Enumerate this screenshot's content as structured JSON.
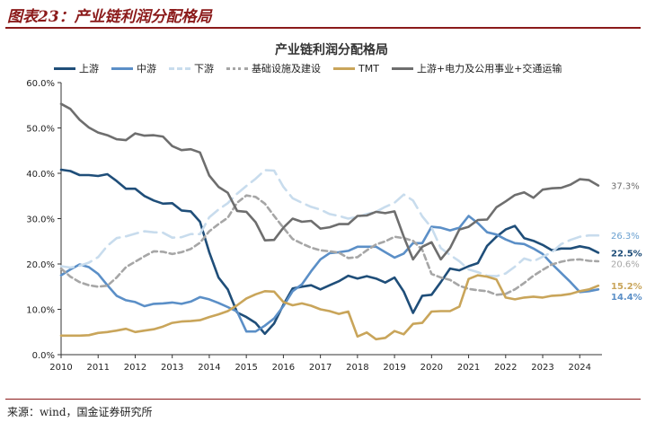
{
  "figure": {
    "title": "图表23：产业链利润分配格局",
    "source": "来源：wind，国金证券研究所"
  },
  "chart_data": {
    "type": "line",
    "title": "产业链利润分配格局",
    "xlim": [
      2010,
      2024.6
    ],
    "ylim": [
      0,
      60
    ],
    "x_ticks": [
      "2010",
      "2011",
      "2012",
      "2013",
      "2014",
      "2015",
      "2016",
      "2017",
      "2018",
      "2019",
      "2020",
      "2021",
      "2022",
      "2023",
      "2024"
    ],
    "y_ticks": [
      "0.0%",
      "10.0%",
      "20.0%",
      "30.0%",
      "40.0%",
      "50.0%",
      "60.0%"
    ],
    "grid": false,
    "legend": "top",
    "series": [
      {
        "name": "上游",
        "color": "#1f4e79",
        "dash": "solid",
        "end_label": "22.5%",
        "x": [
          2010,
          2010.25,
          2010.5,
          2010.75,
          2011,
          2011.25,
          2011.5,
          2011.75,
          2012,
          2012.25,
          2012.5,
          2012.75,
          2013,
          2013.25,
          2013.5,
          2013.75,
          2014,
          2014.25,
          2014.5,
          2014.75,
          2015,
          2015.25,
          2015.5,
          2015.75,
          2016,
          2016.25,
          2016.5,
          2016.75,
          2017,
          2017.25,
          2017.5,
          2017.75,
          2018,
          2018.25,
          2018.5,
          2018.75,
          2019,
          2019.25,
          2019.5,
          2019.75,
          2020,
          2020.25,
          2020.5,
          2020.75,
          2021,
          2021.25,
          2021.5,
          2021.75,
          2022,
          2022.25,
          2022.5,
          2022.75,
          2023,
          2023.25,
          2023.5,
          2023.75,
          2024,
          2024.25,
          2024.5
        ],
        "y": [
          40.8,
          40.5,
          39.6,
          39.6,
          39.4,
          39.8,
          38.3,
          36.6,
          36.6,
          35.0,
          34.0,
          33.3,
          33.4,
          31.8,
          31.6,
          29.3,
          22.6,
          17.0,
          14.4,
          9.3,
          8.3,
          7.0,
          4.6,
          6.9,
          11.0,
          14.6,
          15.0,
          15.3,
          14.4,
          15.3,
          16.2,
          17.4,
          16.8,
          17.3,
          16.8,
          15.9,
          17.0,
          13.9,
          9.2,
          13.0,
          13.2,
          16.0,
          19.0,
          18.6,
          19.5,
          20.2,
          24.0,
          26.0,
          27.6,
          28.4,
          25.7,
          25.1,
          24.2,
          23.0,
          23.4,
          23.4,
          23.9,
          23.5,
          22.5
        ]
      },
      {
        "name": "中游",
        "color": "#5b8fc7",
        "dash": "solid",
        "end_label": "14.4%",
        "x": [
          2010,
          2010.25,
          2010.5,
          2010.75,
          2011,
          2011.25,
          2011.5,
          2011.75,
          2012,
          2012.25,
          2012.5,
          2012.75,
          2013,
          2013.25,
          2013.5,
          2013.75,
          2014,
          2014.25,
          2014.5,
          2014.75,
          2015,
          2015.25,
          2015.5,
          2015.75,
          2016,
          2016.25,
          2016.5,
          2016.75,
          2017,
          2017.25,
          2017.5,
          2017.75,
          2018,
          2018.25,
          2018.5,
          2018.75,
          2019,
          2019.25,
          2019.5,
          2019.75,
          2020,
          2020.25,
          2020.5,
          2020.75,
          2021,
          2021.25,
          2021.5,
          2021.75,
          2022,
          2022.25,
          2022.5,
          2022.75,
          2023,
          2023.25,
          2023.5,
          2023.75,
          2024,
          2024.25,
          2024.5
        ],
        "y": [
          17.5,
          18.8,
          19.9,
          19.3,
          17.8,
          15.3,
          13.0,
          12.0,
          11.6,
          10.7,
          11.2,
          11.3,
          11.5,
          11.2,
          11.7,
          12.7,
          12.2,
          11.4,
          10.5,
          9.5,
          5.1,
          5.1,
          6.4,
          8.0,
          10.7,
          14.0,
          15.5,
          18.4,
          21.0,
          22.4,
          22.6,
          22.9,
          23.8,
          23.8,
          23.8,
          22.6,
          21.4,
          22.3,
          24.6,
          24.6,
          28.2,
          28.0,
          27.4,
          28.0,
          30.6,
          29.0,
          27.0,
          26.5,
          25.4,
          24.6,
          24.4,
          23.4,
          22.2,
          20.0,
          18.0,
          16.0,
          13.8,
          14.0,
          14.4
        ]
      },
      {
        "name": "下游",
        "color": "#c8dced",
        "dash": "long",
        "end_label": "26.3%",
        "x": [
          2010,
          2010.25,
          2010.5,
          2010.75,
          2011,
          2011.25,
          2011.5,
          2011.75,
          2012,
          2012.25,
          2012.5,
          2012.75,
          2013,
          2013.25,
          2013.5,
          2013.75,
          2014,
          2014.25,
          2014.5,
          2014.75,
          2015,
          2015.25,
          2015.5,
          2015.75,
          2016,
          2016.25,
          2016.5,
          2016.75,
          2017,
          2017.25,
          2017.5,
          2017.75,
          2018,
          2018.25,
          2018.5,
          2018.75,
          2019,
          2019.25,
          2019.5,
          2019.75,
          2020,
          2020.25,
          2020.5,
          2020.75,
          2021,
          2021.25,
          2021.5,
          2021.75,
          2022,
          2022.25,
          2022.5,
          2022.75,
          2023,
          2023.25,
          2023.5,
          2023.75,
          2024,
          2024.25,
          2024.5
        ],
        "y": [
          19.5,
          19.2,
          19.6,
          20.3,
          21.5,
          24.0,
          25.7,
          26.1,
          26.7,
          27.2,
          27.0,
          26.9,
          25.8,
          25.9,
          26.6,
          26.6,
          30.3,
          32.0,
          33.4,
          35.5,
          37.2,
          38.8,
          40.7,
          40.6,
          37.0,
          34.5,
          33.5,
          32.6,
          32.0,
          31.0,
          30.6,
          30.0,
          30.4,
          31.0,
          31.5,
          32.6,
          33.5,
          35.3,
          34.0,
          30.5,
          28.0,
          23.5,
          22.0,
          20.6,
          18.8,
          18.2,
          17.4,
          17.3,
          17.9,
          19.4,
          21.2,
          20.6,
          21.6,
          22.6,
          24.4,
          25.3,
          26.0,
          26.3,
          26.3
        ]
      },
      {
        "name": "基础设施及建设",
        "color": "#a6a6a6",
        "dash": "short",
        "end_label": "20.6%",
        "x": [
          2010,
          2010.25,
          2010.5,
          2010.75,
          2011,
          2011.25,
          2011.5,
          2011.75,
          2012,
          2012.25,
          2012.5,
          2012.75,
          2013,
          2013.25,
          2013.5,
          2013.75,
          2014,
          2014.25,
          2014.5,
          2014.75,
          2015,
          2015.25,
          2015.5,
          2015.75,
          2016,
          2016.25,
          2016.5,
          2016.75,
          2017,
          2017.25,
          2017.5,
          2017.75,
          2018,
          2018.25,
          2018.5,
          2018.75,
          2019,
          2019.25,
          2019.5,
          2019.75,
          2020,
          2020.25,
          2020.5,
          2020.75,
          2021,
          2021.25,
          2021.5,
          2021.75,
          2022,
          2022.25,
          2022.5,
          2022.75,
          2023,
          2023.25,
          2023.5,
          2023.75,
          2024,
          2024.25,
          2024.5
        ],
        "y": [
          19.0,
          17.2,
          16.0,
          15.3,
          15.0,
          15.2,
          17.0,
          19.3,
          20.5,
          21.7,
          22.8,
          22.7,
          22.2,
          22.6,
          23.3,
          24.7,
          27.2,
          28.8,
          30.2,
          33.5,
          35.1,
          34.8,
          33.3,
          30.6,
          28.0,
          25.5,
          24.5,
          23.6,
          23.0,
          22.8,
          22.5,
          21.3,
          21.5,
          23.0,
          24.3,
          25.0,
          26.0,
          25.7,
          25.1,
          23.1,
          17.8,
          17.0,
          16.5,
          15.2,
          14.5,
          14.2,
          14.0,
          13.2,
          13.4,
          14.4,
          15.8,
          17.4,
          18.7,
          19.9,
          20.5,
          20.9,
          21.0,
          20.7,
          20.6
        ]
      },
      {
        "name": "TMT",
        "color": "#c9a55a",
        "dash": "solid",
        "end_label": "15.2%",
        "x": [
          2010,
          2010.25,
          2010.5,
          2010.75,
          2011,
          2011.25,
          2011.5,
          2011.75,
          2012,
          2012.25,
          2012.5,
          2012.75,
          2013,
          2013.25,
          2013.5,
          2013.75,
          2014,
          2014.25,
          2014.5,
          2014.75,
          2015,
          2015.25,
          2015.5,
          2015.75,
          2016,
          2016.25,
          2016.5,
          2016.75,
          2017,
          2017.25,
          2017.5,
          2017.75,
          2018,
          2018.25,
          2018.5,
          2018.75,
          2019,
          2019.25,
          2019.5,
          2019.75,
          2020,
          2020.25,
          2020.5,
          2020.75,
          2021,
          2021.25,
          2021.5,
          2021.75,
          2022,
          2022.25,
          2022.5,
          2022.75,
          2023,
          2023.25,
          2023.5,
          2023.75,
          2024,
          2024.25,
          2024.5
        ],
        "y": [
          4.2,
          4.2,
          4.2,
          4.3,
          4.8,
          5.0,
          5.3,
          5.7,
          5.0,
          5.3,
          5.6,
          6.2,
          7.0,
          7.3,
          7.4,
          7.6,
          8.3,
          8.9,
          9.6,
          10.9,
          12.4,
          13.3,
          14.0,
          13.9,
          11.6,
          10.9,
          11.3,
          10.8,
          10.0,
          9.6,
          9.0,
          9.5,
          4.0,
          4.9,
          3.4,
          3.7,
          5.2,
          4.5,
          6.8,
          7.0,
          9.5,
          9.6,
          9.6,
          10.6,
          16.7,
          17.5,
          17.2,
          16.6,
          12.6,
          12.2,
          12.6,
          12.8,
          12.6,
          13.0,
          13.1,
          13.4,
          14.0,
          14.4,
          15.2
        ]
      },
      {
        "name": "上游+电力及公用事业+交通运输",
        "color": "#6e6e6e",
        "dash": "solid",
        "end_label": "37.3%",
        "x": [
          2010,
          2010.25,
          2010.5,
          2010.75,
          2011,
          2011.25,
          2011.5,
          2011.75,
          2012,
          2012.25,
          2012.5,
          2012.75,
          2013,
          2013.25,
          2013.5,
          2013.75,
          2014,
          2014.25,
          2014.5,
          2014.75,
          2015,
          2015.25,
          2015.5,
          2015.75,
          2016,
          2016.25,
          2016.5,
          2016.75,
          2017,
          2017.25,
          2017.5,
          2017.75,
          2018,
          2018.25,
          2018.5,
          2018.75,
          2019,
          2019.25,
          2019.5,
          2019.75,
          2020,
          2020.25,
          2020.5,
          2020.75,
          2021,
          2021.25,
          2021.5,
          2021.75,
          2022,
          2022.25,
          2022.5,
          2022.75,
          2023,
          2023.25,
          2023.5,
          2023.75,
          2024,
          2024.25,
          2024.5
        ],
        "y": [
          55.3,
          54.2,
          51.8,
          50.1,
          49.0,
          48.4,
          47.5,
          47.3,
          48.8,
          48.3,
          48.4,
          48.1,
          46.0,
          45.1,
          45.3,
          44.6,
          39.5,
          37.0,
          35.7,
          31.7,
          31.5,
          29.2,
          25.2,
          25.3,
          28.0,
          30.0,
          29.3,
          29.5,
          27.8,
          28.1,
          28.8,
          28.8,
          30.6,
          30.7,
          31.5,
          31.2,
          31.6,
          26.0,
          21.0,
          23.8,
          24.8,
          21.0,
          23.5,
          27.6,
          28.2,
          29.7,
          29.8,
          32.5,
          33.8,
          35.2,
          35.8,
          34.6,
          36.4,
          36.7,
          36.8,
          37.5,
          38.7,
          38.5,
          37.3
        ]
      }
    ]
  }
}
